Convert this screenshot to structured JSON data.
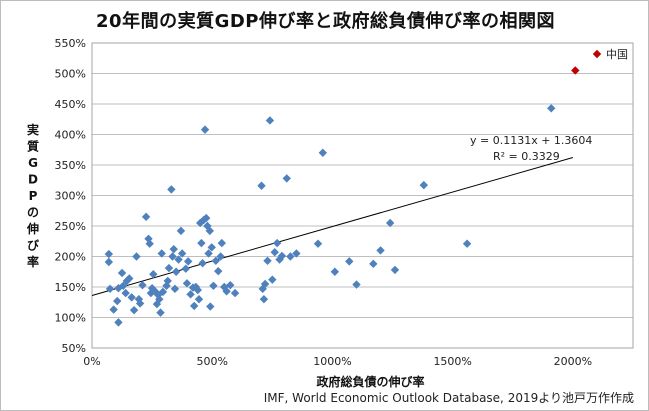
{
  "chart_data": {
    "type": "scatter",
    "title": "20年間の実質GDP伸び率と政府総負債伸び率の相関図",
    "xlabel": "政府総負債の伸び率",
    "ylabel_chars": [
      "実",
      "質",
      "G",
      "D",
      "P",
      "の",
      "伸",
      "び",
      "率"
    ],
    "source": "IMF, World Economic Outlook Database, 2019より池戸万作作成",
    "xlim": [
      0,
      2250
    ],
    "ylim": [
      50,
      550
    ],
    "x_ticks": [
      {
        "value": 0,
        "label": "0%"
      },
      {
        "value": 500,
        "label": "500%"
      },
      {
        "value": 1000,
        "label": "1000%"
      },
      {
        "value": 1500,
        "label": "1500%"
      },
      {
        "value": 2000,
        "label": "2000%"
      }
    ],
    "y_ticks": [
      {
        "value": 50,
        "label": "50%"
      },
      {
        "value": 100,
        "label": "100%"
      },
      {
        "value": 150,
        "label": "150%"
      },
      {
        "value": 200,
        "label": "200%"
      },
      {
        "value": 250,
        "label": "250%"
      },
      {
        "value": 300,
        "label": "300%"
      },
      {
        "value": 350,
        "label": "350%"
      },
      {
        "value": 400,
        "label": "400%"
      },
      {
        "value": 450,
        "label": "450%"
      },
      {
        "value": 500,
        "label": "500%"
      },
      {
        "value": 550,
        "label": "550%"
      }
    ],
    "grid": true,
    "legend": {
      "position": "top-right",
      "entries": [
        {
          "label": "中国",
          "color": "#c00000"
        }
      ]
    },
    "trendline": {
      "slope": 0.1131,
      "intercept": 1.3604,
      "x_range": [
        0,
        2000
      ],
      "equation": "y = 0.1131x + 1.3604",
      "r2": "R² = 0.3329"
    },
    "point_color": "#4f81bd",
    "series": [
      {
        "points": [
          [
            70,
            204
          ],
          [
            70,
            191
          ],
          [
            75,
            147
          ],
          [
            90,
            113
          ],
          [
            110,
            92
          ],
          [
            105,
            127
          ],
          [
            110,
            148
          ],
          [
            130,
            152
          ],
          [
            125,
            173
          ],
          [
            140,
            140
          ],
          [
            145,
            160
          ],
          [
            155,
            164
          ],
          [
            165,
            133
          ],
          [
            175,
            112
          ],
          [
            185,
            200
          ],
          [
            195,
            130
          ],
          [
            200,
            123
          ],
          [
            210,
            153
          ],
          [
            225,
            265
          ],
          [
            235,
            229
          ],
          [
            240,
            221
          ],
          [
            245,
            140
          ],
          [
            250,
            148
          ],
          [
            255,
            171
          ],
          [
            262,
            143
          ],
          [
            270,
            122
          ],
          [
            275,
            137
          ],
          [
            280,
            130
          ],
          [
            285,
            108
          ],
          [
            290,
            205
          ],
          [
            295,
            142
          ],
          [
            310,
            152
          ],
          [
            315,
            160
          ],
          [
            320,
            181
          ],
          [
            330,
            310
          ],
          [
            335,
            200
          ],
          [
            340,
            212
          ],
          [
            345,
            147
          ],
          [
            350,
            175
          ],
          [
            360,
            195
          ],
          [
            370,
            242
          ],
          [
            375,
            205
          ],
          [
            390,
            180
          ],
          [
            395,
            156
          ],
          [
            400,
            192
          ],
          [
            410,
            138
          ],
          [
            420,
            149
          ],
          [
            425,
            119
          ],
          [
            432,
            150
          ],
          [
            440,
            145
          ],
          [
            445,
            130
          ],
          [
            450,
            255
          ],
          [
            455,
            222
          ],
          [
            460,
            189
          ],
          [
            465,
            260
          ],
          [
            470,
            408
          ],
          [
            475,
            263
          ],
          [
            480,
            250
          ],
          [
            485,
            205
          ],
          [
            490,
            242
          ],
          [
            492,
            118
          ],
          [
            498,
            215
          ],
          [
            505,
            152
          ],
          [
            515,
            193
          ],
          [
            525,
            176
          ],
          [
            535,
            200
          ],
          [
            540,
            222
          ],
          [
            550,
            150
          ],
          [
            560,
            143
          ],
          [
            575,
            153
          ],
          [
            595,
            140
          ],
          [
            705,
            316
          ],
          [
            710,
            147
          ],
          [
            715,
            130
          ],
          [
            720,
            155
          ],
          [
            730,
            193
          ],
          [
            740,
            423
          ],
          [
            750,
            162
          ],
          [
            760,
            207
          ],
          [
            770,
            222
          ],
          [
            780,
            195
          ],
          [
            790,
            201
          ],
          [
            810,
            328
          ],
          [
            825,
            200
          ],
          [
            850,
            205
          ],
          [
            940,
            221
          ],
          [
            960,
            370
          ],
          [
            1010,
            175
          ],
          [
            1070,
            192
          ],
          [
            1100,
            154
          ],
          [
            1170,
            188
          ],
          [
            1200,
            210
          ],
          [
            1240,
            255
          ],
          [
            1260,
            178
          ],
          [
            1380,
            317
          ],
          [
            1560,
            221
          ],
          [
            1910,
            443
          ]
        ]
      },
      {
        "name": "中国",
        "color": "#c00000",
        "points": [
          [
            2010,
            505
          ]
        ]
      }
    ]
  }
}
